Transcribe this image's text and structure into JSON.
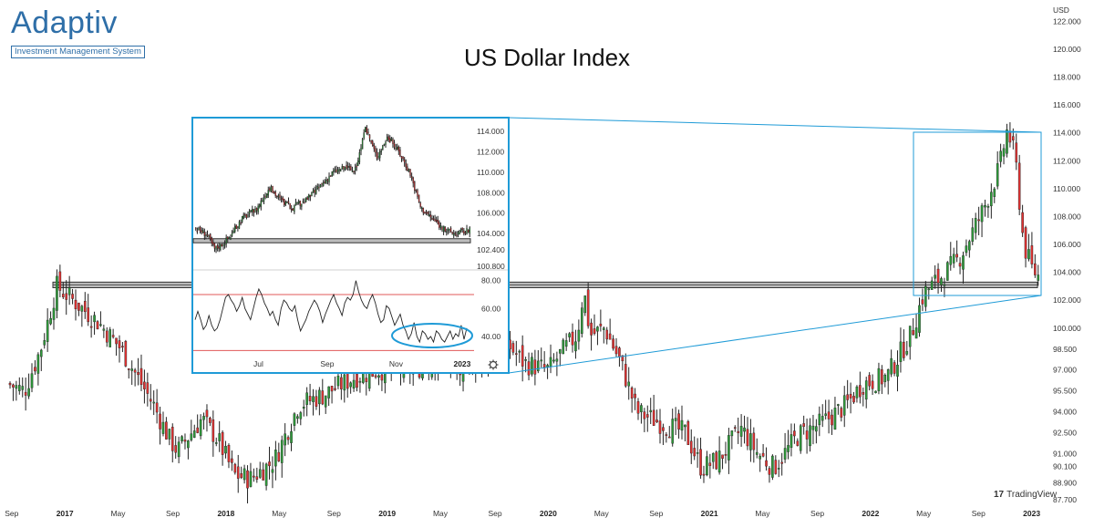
{
  "title": "US Dollar Index",
  "logo": {
    "wordmark": "Adaptiv",
    "tagline": "Investment Management System"
  },
  "watermark": "TradingView",
  "colors": {
    "up": "#2e9a3a",
    "down": "#e03131",
    "frame": "#1f9bd7",
    "support_band": "#8a8a8a",
    "rsi_bounds": "#e05a5a",
    "rsi_line": "#222222"
  },
  "chart_data": [
    {
      "type": "candlestick",
      "name": "main-weekly",
      "currency": "USD",
      "ylim": [
        87.7,
        123.0
      ],
      "y_ticks": [
        "122.000",
        "120.000",
        "118.000",
        "116.000",
        "114.000",
        "112.000",
        "110.000",
        "108.000",
        "106.000",
        "104.000",
        "102.000",
        "100.000",
        "98.500",
        "97.000",
        "95.500",
        "94.000",
        "92.500",
        "91.000",
        "90.100",
        "88.900",
        "87.700"
      ],
      "x_ticks": [
        {
          "label": "Sep",
          "bold": false
        },
        {
          "label": "2017",
          "bold": true
        },
        {
          "label": "May",
          "bold": false
        },
        {
          "label": "Sep",
          "bold": false
        },
        {
          "label": "2018",
          "bold": true
        },
        {
          "label": "May",
          "bold": false
        },
        {
          "label": "Sep",
          "bold": false
        },
        {
          "label": "2019",
          "bold": true
        },
        {
          "label": "May",
          "bold": false
        },
        {
          "label": "Sep",
          "bold": false
        },
        {
          "label": "2020",
          "bold": true
        },
        {
          "label": "May",
          "bold": false
        },
        {
          "label": "Sep",
          "bold": false
        },
        {
          "label": "2021",
          "bold": true
        },
        {
          "label": "May",
          "bold": false
        },
        {
          "label": "Sep",
          "bold": false
        },
        {
          "label": "2022",
          "bold": true
        },
        {
          "label": "May",
          "bold": false
        },
        {
          "label": "Sep",
          "bold": false
        },
        {
          "label": "2023",
          "bold": true
        }
      ],
      "support_band": [
        102.9,
        103.3
      ],
      "price_path": [
        [
          2016.65,
          96.0
        ],
        [
          2016.75,
          95.5
        ],
        [
          2016.85,
          98.5
        ],
        [
          2016.95,
          103.0
        ],
        [
          2017.0,
          102.5
        ],
        [
          2017.2,
          100.5
        ],
        [
          2017.35,
          98.5
        ],
        [
          2017.55,
          94.5
        ],
        [
          2017.65,
          92.0
        ],
        [
          2017.7,
          91.2
        ],
        [
          2017.85,
          93.5
        ],
        [
          2017.95,
          92.0
        ],
        [
          2018.05,
          89.5
        ],
        [
          2018.15,
          89.2
        ],
        [
          2018.3,
          90.5
        ],
        [
          2018.45,
          94.5
        ],
        [
          2018.6,
          95.2
        ],
        [
          2018.8,
          96.5
        ],
        [
          2018.95,
          97.0
        ],
        [
          2019.2,
          97.2
        ],
        [
          2019.35,
          97.8
        ],
        [
          2019.45,
          96.8
        ],
        [
          2019.6,
          98.0
        ],
        [
          2019.75,
          98.8
        ],
        [
          2019.85,
          97.5
        ],
        [
          2020.0,
          97.0
        ],
        [
          2020.1,
          98.5
        ],
        [
          2020.18,
          99.5
        ],
        [
          2020.22,
          102.8
        ],
        [
          2020.26,
          99.5
        ],
        [
          2020.35,
          100.0
        ],
        [
          2020.45,
          97.5
        ],
        [
          2020.55,
          94.0
        ],
        [
          2020.7,
          93.2
        ],
        [
          2020.85,
          92.5
        ],
        [
          2020.95,
          90.0
        ],
        [
          2021.05,
          90.5
        ],
        [
          2021.2,
          92.8
        ],
        [
          2021.3,
          91.0
        ],
        [
          2021.4,
          90.0
        ],
        [
          2021.55,
          92.3
        ],
        [
          2021.7,
          93.2
        ],
        [
          2021.85,
          94.5
        ],
        [
          2021.95,
          96.0
        ],
        [
          2022.1,
          96.5
        ],
        [
          2022.25,
          99.5
        ],
        [
          2022.33,
          102.5
        ],
        [
          2022.45,
          103.8
        ],
        [
          2022.55,
          105.0
        ],
        [
          2022.7,
          108.5
        ],
        [
          2022.8,
          111.5
        ],
        [
          2022.85,
          114.3
        ],
        [
          2022.9,
          112.0
        ],
        [
          2022.95,
          106.0
        ],
        [
          2023.0,
          104.3
        ],
        [
          2023.05,
          103.6
        ]
      ]
    },
    {
      "type": "candlestick",
      "name": "inset-daily",
      "ylim": [
        100.8,
        114.9
      ],
      "y_ticks": [
        "114.000",
        "112.000",
        "110.000",
        "108.000",
        "106.000",
        "104.000",
        "102.400",
        "100.800"
      ],
      "x_ticks": [
        {
          "label": "Jul",
          "bold": false
        },
        {
          "label": "Sep",
          "bold": false
        },
        {
          "label": "Nov",
          "bold": false
        },
        {
          "label": "2023",
          "bold": true
        }
      ],
      "support_band": [
        103.1,
        103.5
      ],
      "price_path": [
        [
          0.0,
          104.5
        ],
        [
          0.04,
          104.0
        ],
        [
          0.07,
          102.5
        ],
        [
          0.09,
          102.8
        ],
        [
          0.13,
          103.8
        ],
        [
          0.17,
          105.5
        ],
        [
          0.22,
          106.3
        ],
        [
          0.27,
          108.5
        ],
        [
          0.31,
          107.3
        ],
        [
          0.35,
          106.5
        ],
        [
          0.4,
          107.2
        ],
        [
          0.45,
          108.5
        ],
        [
          0.5,
          110.0
        ],
        [
          0.55,
          110.5
        ],
        [
          0.58,
          110.0
        ],
        [
          0.62,
          114.3
        ],
        [
          0.66,
          111.5
        ],
        [
          0.7,
          113.5
        ],
        [
          0.74,
          112.0
        ],
        [
          0.78,
          110.0
        ],
        [
          0.82,
          106.5
        ],
        [
          0.86,
          105.5
        ],
        [
          0.9,
          104.5
        ],
        [
          0.94,
          104.0
        ],
        [
          0.97,
          104.2
        ],
        [
          1.0,
          104.3
        ]
      ]
    },
    {
      "type": "line",
      "name": "inset-oscillator",
      "ylim": [
        25,
        85
      ],
      "y_ticks": [
        "80.00",
        "60.00",
        "40.00"
      ],
      "bounds": [
        70,
        30
      ],
      "highlight": "ellipse around the low readings near the right edge",
      "values": [
        52,
        58,
        52,
        45,
        48,
        55,
        48,
        44,
        46,
        52,
        60,
        68,
        70,
        66,
        63,
        58,
        62,
        68,
        60,
        56,
        52,
        60,
        68,
        74,
        70,
        64,
        60,
        55,
        58,
        52,
        48,
        60,
        66,
        64,
        60,
        58,
        62,
        52,
        44,
        48,
        52,
        58,
        62,
        66,
        63,
        58,
        50,
        56,
        61,
        66,
        70,
        64,
        60,
        55,
        64,
        68,
        66,
        70,
        80,
        72,
        66,
        62,
        60,
        66,
        70,
        64,
        56,
        50,
        52,
        62,
        60,
        54,
        48,
        52,
        56,
        48,
        44,
        38,
        42,
        50,
        40,
        36,
        44,
        42,
        38,
        40,
        36,
        44,
        42,
        38,
        36,
        40,
        44,
        38,
        42,
        40,
        48,
        38,
        46
      ]
    }
  ]
}
